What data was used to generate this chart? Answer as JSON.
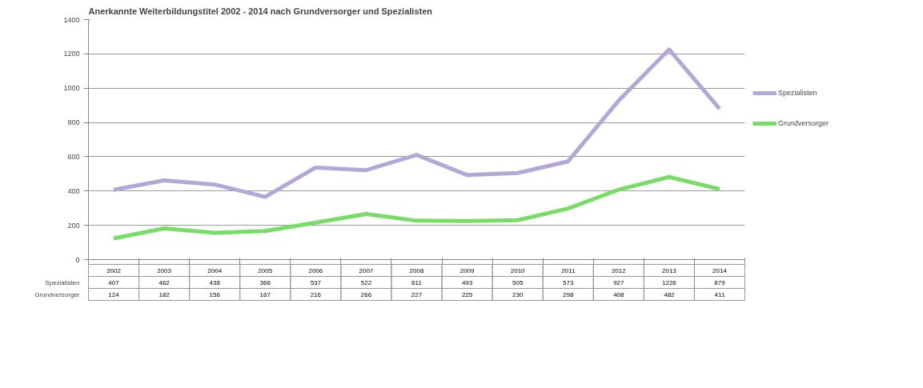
{
  "chart_data": {
    "type": "line",
    "title": "Anerkannte Weiterbildungstitel 2002 - 2014 nach Grundversorger und Spezialisten",
    "categories": [
      "2002",
      "2003",
      "2004",
      "2005",
      "2006",
      "2007",
      "2008",
      "2009",
      "2010",
      "2011",
      "2012",
      "2013",
      "2014"
    ],
    "series": [
      {
        "name": "Spezialisten",
        "color": "#b4a7d6",
        "values": [
          407,
          462,
          438,
          366,
          537,
          522,
          611,
          493,
          505,
          573,
          927,
          1226,
          879
        ]
      },
      {
        "name": "Grundversorger",
        "color": "#77dd66",
        "values": [
          124,
          182,
          156,
          167,
          216,
          266,
          227,
          225,
          230,
          298,
          408,
          482,
          411
        ]
      }
    ],
    "ylim": [
      0,
      1400
    ],
    "yticks": [
      0,
      200,
      400,
      600,
      800,
      1000,
      1200,
      1400
    ],
    "grid": "y",
    "legend": "right",
    "data_labels": true,
    "marker": "none",
    "line_style": "solid"
  }
}
